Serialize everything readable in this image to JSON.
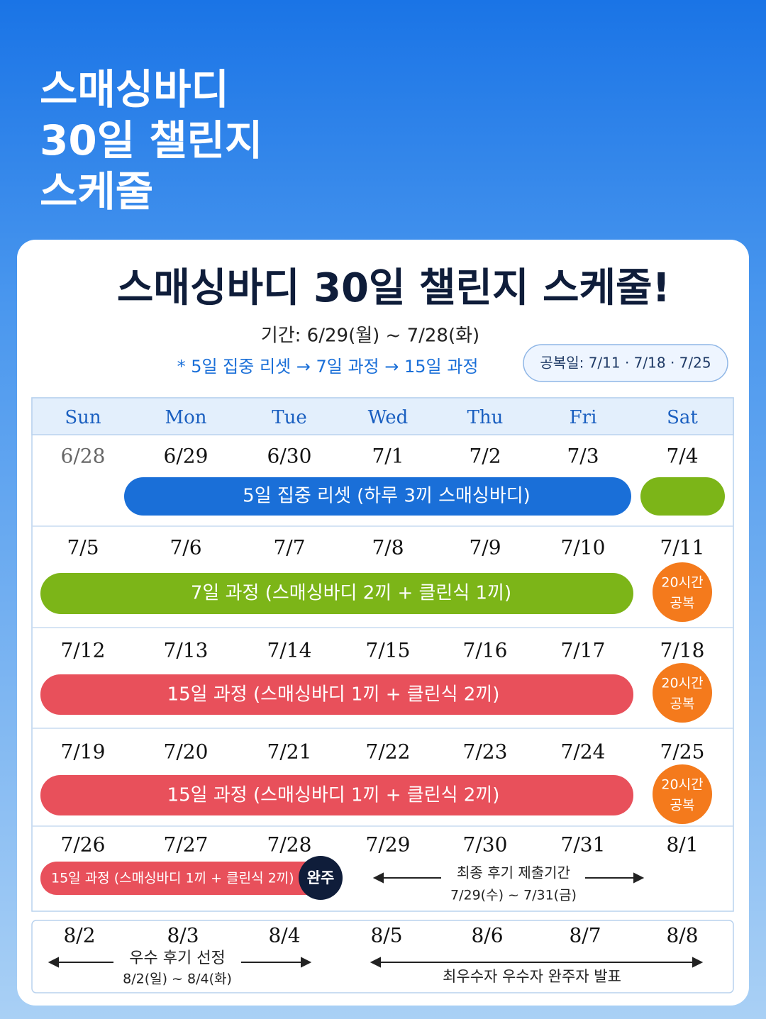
{
  "header": {
    "title": [
      "스매싱바디",
      "30일 챌린지",
      "스케줄"
    ]
  },
  "card": {
    "title": "스매싱바디 30일 챌린지 스케줄!",
    "period": "기간: 6/29(월) ~ 7/28(화)",
    "flow": "* 5일 집중 리셋 → 7일 과정 → 15일 과정",
    "rest": "공복일: 7/11 · 7/18 · 7/25"
  },
  "calendar": {
    "weekdays": [
      "Sun",
      "Mon",
      "Tue",
      "Wed",
      "Thu",
      "Fri",
      "Sat"
    ],
    "weeks": [
      {
        "dates": [
          "6/28",
          "6/29",
          "6/30",
          "7/1",
          "7/2",
          "7/3",
          "7/4"
        ],
        "bar": "5일 집중 리셋 (하루 3끼 스매싱바디)"
      },
      {
        "dates": [
          "7/5",
          "7/6",
          "7/7",
          "7/8",
          "7/9",
          "7/10",
          "7/11"
        ],
        "bar": "7일 과정 (스매싱바디 2끼 + 클린식 1끼)",
        "badge": [
          "20시간",
          "공복"
        ]
      },
      {
        "dates": [
          "7/12",
          "7/13",
          "7/14",
          "7/15",
          "7/16",
          "7/17",
          "7/18"
        ],
        "bar": "15일 과정 (스매싱바디 1끼 + 클린식 2끼)",
        "badge": [
          "20시간",
          "공복"
        ]
      },
      {
        "dates": [
          "7/19",
          "7/20",
          "7/21",
          "7/22",
          "7/23",
          "7/24",
          "7/25"
        ],
        "bar": "15일 과정 (스매싱바디 1끼 + 클린식 2끼)",
        "badge": [
          "20시간",
          "공복"
        ]
      },
      {
        "dates": [
          "7/26",
          "7/27",
          "7/28",
          "7/29",
          "7/30",
          "7/31",
          "8/1"
        ],
        "bar": "15일 과정 (스매싱바디 1끼 + 클린식 2끼)",
        "finish": "완주",
        "note": "최종 후기 제출기간",
        "note_dates": "7/29(수) ~ 7/31(금)"
      }
    ],
    "extra": {
      "dates": [
        "8/2",
        "8/3",
        "8/4",
        "8/5",
        "8/6",
        "8/7",
        "8/8"
      ],
      "review": "우수 후기 선정",
      "review_dates": "8/2(일) ~ 8/4(화)",
      "announce": "최우수자 우수자 완주자 발표"
    }
  }
}
